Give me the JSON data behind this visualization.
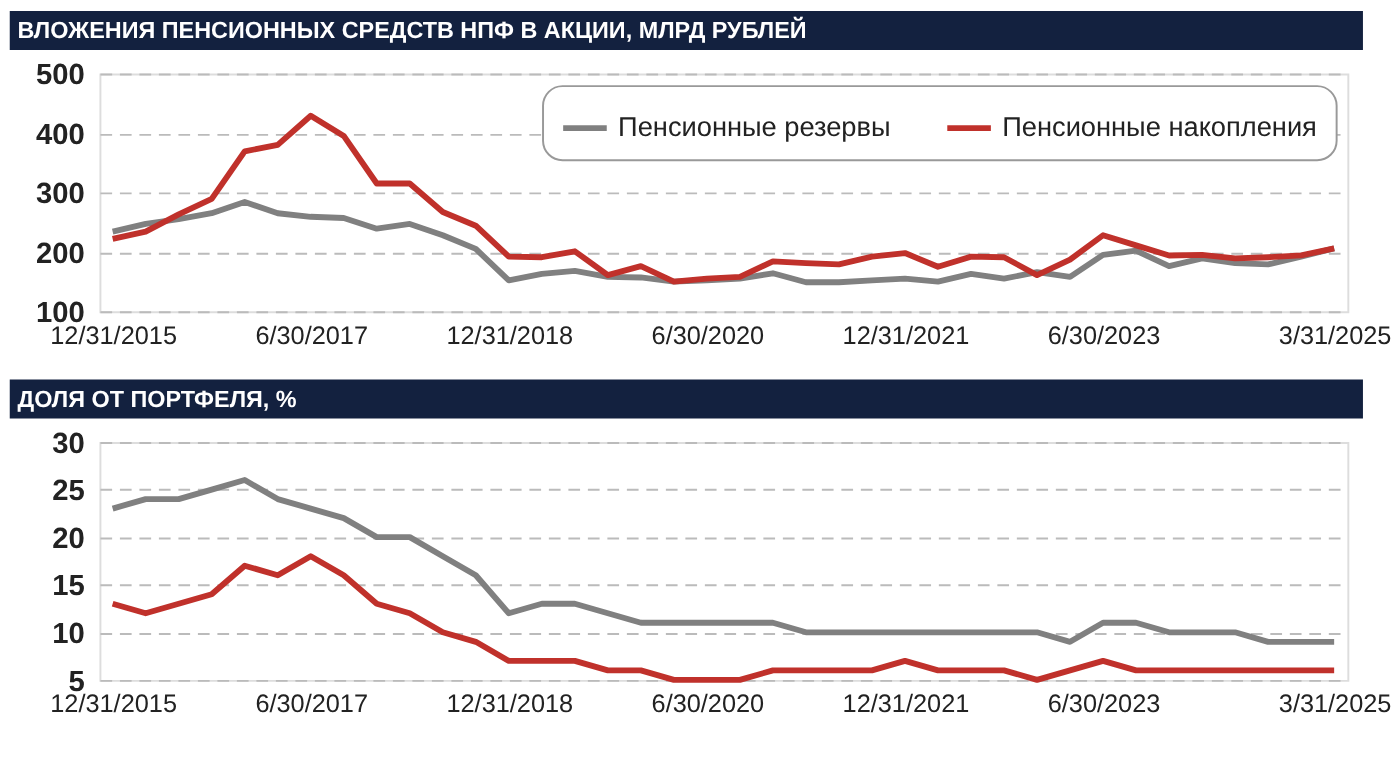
{
  "chart_data": [
    {
      "type": "line",
      "title": "ВЛОЖЕНИЯ ПЕНСИОННЫХ СРЕДСТВ НПФ В АКЦИИ, МЛРД РУБЛЕЙ",
      "categories": [
        "12/31/2015",
        null,
        null,
        null,
        null,
        null,
        "6/30/2017",
        null,
        null,
        null,
        null,
        null,
        "12/31/2018",
        null,
        null,
        null,
        null,
        null,
        "6/30/2020",
        null,
        null,
        null,
        null,
        null,
        "12/31/2021",
        null,
        null,
        null,
        null,
        null,
        "6/30/2023",
        null,
        null,
        null,
        null,
        null,
        null,
        "3/31/2025"
      ],
      "series": [
        {
          "name": "Пенсионные резервы",
          "color": "#808080",
          "values": [
            234,
            247,
            255,
            265,
            284,
            265,
            259,
            257,
            239,
            247,
            228,
            205,
            152,
            163,
            168,
            158,
            157,
            150,
            152,
            155,
            164,
            149,
            149,
            152,
            155,
            150,
            163,
            155,
            166,
            158,
            195,
            202,
            176,
            189,
            181,
            179,
            192,
            206
          ]
        },
        {
          "name": "Пенсионные накопления",
          "color": "#c0312b",
          "values": [
            222,
            234,
            263,
            289,
            369,
            380,
            429,
            395,
            315,
            315,
            267,
            244,
            192,
            191,
            201,
            161,
            176,
            150,
            155,
            158,
            184,
            181,
            179,
            192,
            198,
            175,
            192,
            191,
            161,
            187,
            228,
            211,
            194,
            195,
            189,
            191,
            194,
            206
          ]
        }
      ],
      "ylim": [
        100,
        500
      ],
      "yticks": [
        100,
        200,
        300,
        400,
        500
      ],
      "grid": "y",
      "legend": "top right",
      "line_style": "solid"
    },
    {
      "type": "line",
      "title": "ДОЛЯ ОТ ПОРТФЕЛЯ, %",
      "categories": [
        "12/31/2015",
        null,
        null,
        null,
        null,
        null,
        "6/30/2017",
        null,
        null,
        null,
        null,
        null,
        "12/31/2018",
        null,
        null,
        null,
        null,
        null,
        "6/30/2020",
        null,
        null,
        null,
        null,
        null,
        "12/31/2021",
        null,
        null,
        null,
        null,
        null,
        "6/30/2023",
        null,
        null,
        null,
        null,
        null,
        null,
        "3/31/2025"
      ],
      "series": [
        {
          "name": "Пенсионные резервы",
          "color": "#808080",
          "values": [
            23,
            24,
            24,
            25,
            26,
            24,
            23,
            22,
            20,
            20,
            18,
            16,
            12,
            13,
            13,
            12,
            11,
            11,
            11,
            11,
            11,
            10,
            10,
            10,
            10,
            10,
            10,
            10,
            10,
            9,
            11,
            11,
            10,
            10,
            10,
            9,
            9,
            9
          ]
        },
        {
          "name": "Пенсионные накопления",
          "color": "#c0312b",
          "values": [
            13,
            12,
            13,
            14,
            17,
            16,
            18,
            16,
            13,
            12,
            10,
            9,
            7,
            7,
            7,
            6,
            6,
            5,
            5,
            5,
            6,
            6,
            6,
            6,
            7,
            6,
            6,
            6,
            5,
            6,
            7,
            6,
            6,
            6,
            6,
            6,
            6,
            6
          ]
        }
      ],
      "ylim": [
        5,
        30
      ],
      "yticks": [
        5,
        10,
        15,
        20,
        25,
        30
      ],
      "grid": "y",
      "legend": "top right",
      "line_style": "solid"
    }
  ]
}
